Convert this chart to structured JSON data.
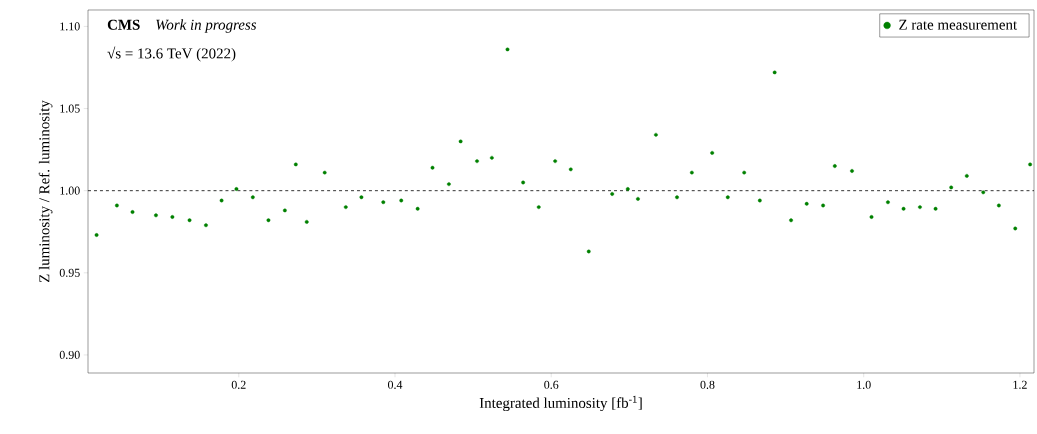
{
  "chart_data": {
    "type": "scatter",
    "xlabel": "Integrated luminosity [fb$^{-1}$]",
    "ylabel": "Z luminosity / Ref. luminosity",
    "annotations": [
      "**CMS**",
      "*Work in progress*",
      "√s = 13.6 TeV (2022)"
    ],
    "xlim": [
      0.007,
      1.218
    ],
    "ylim": [
      0.889,
      1.11
    ],
    "xticks": [
      {
        "value": 0.2,
        "label": "0.2"
      },
      {
        "value": 0.4,
        "label": "0.4"
      },
      {
        "value": 0.6,
        "label": "0.6"
      },
      {
        "value": 0.8,
        "label": "0.8"
      },
      {
        "value": 1.0,
        "label": "1.0"
      },
      {
        "value": 1.2,
        "label": "1.2"
      }
    ],
    "yticks": [
      {
        "value": 0.9,
        "label": "0.90"
      },
      {
        "value": 0.95,
        "label": "0.95"
      },
      {
        "value": 1.0,
        "label": "1.00"
      },
      {
        "value": 1.05,
        "label": "1.05"
      },
      {
        "value": 1.1,
        "label": "1.10"
      }
    ],
    "legend": "top right",
    "marker": "circle",
    "grid": false,
    "ref_lines": [
      {
        "axis": "y",
        "value": 1.0,
        "color": "#000000",
        "line_style": "dashed"
      }
    ],
    "series": [
      {
        "name": "Z rate measurement",
        "color": "#008000",
        "x": [
          0.018,
          0.044,
          0.064,
          0.094,
          0.115,
          0.137,
          0.158,
          0.178,
          0.197,
          0.218,
          0.238,
          0.259,
          0.273,
          0.287,
          0.31,
          0.337,
          0.357,
          0.385,
          0.408,
          0.429,
          0.448,
          0.469,
          0.484,
          0.505,
          0.524,
          0.544,
          0.564,
          0.584,
          0.605,
          0.625,
          0.648,
          0.678,
          0.698,
          0.711,
          0.734,
          0.761,
          0.78,
          0.806,
          0.826,
          0.847,
          0.867,
          0.886,
          0.907,
          0.927,
          0.948,
          0.963,
          0.985,
          1.01,
          1.031,
          1.051,
          1.072,
          1.092,
          1.112,
          1.132,
          1.153,
          1.173,
          1.194,
          1.213
        ],
        "values": [
          0.973,
          0.991,
          0.987,
          0.985,
          0.984,
          0.982,
          0.979,
          0.994,
          1.001,
          0.996,
          0.982,
          0.988,
          1.016,
          0.981,
          1.011,
          0.99,
          0.996,
          0.993,
          0.994,
          0.989,
          1.014,
          1.004,
          1.03,
          1.018,
          1.02,
          1.086,
          1.005,
          0.99,
          1.018,
          1.013,
          0.963,
          0.998,
          1.001,
          0.995,
          1.034,
          0.996,
          1.011,
          1.023,
          0.996,
          1.011,
          0.994,
          1.072,
          0.982,
          0.992,
          0.991,
          1.015,
          1.012,
          0.984,
          0.993,
          0.989,
          0.99,
          0.989,
          1.002,
          1.009,
          0.999,
          0.991,
          0.977,
          1.016
        ]
      }
    ]
  }
}
